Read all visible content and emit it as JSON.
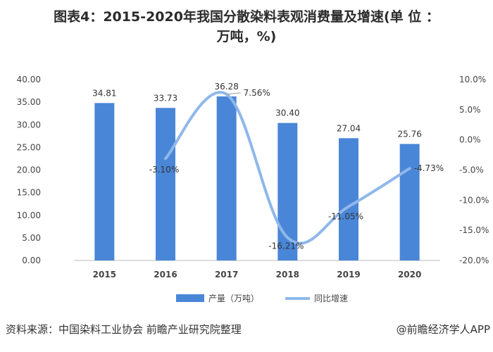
{
  "title_line1": "图表4：2015-2020年我国分散染料表观消费量及增速(单 位 ：",
  "title_line2": "万吨，%)",
  "source": "资料来源：中国染料工业协会 前瞻产业研究院整理",
  "brand": "@前瞻经济学人APP",
  "colors": {
    "bar": "#4a86d8",
    "line": "#8fb8ea"
  },
  "chart_data": {
    "type": "bar",
    "categories": [
      "2015",
      "2016",
      "2017",
      "2018",
      "2019",
      "2020"
    ],
    "left_axis": {
      "min": 0,
      "max": 40,
      "ticks": [
        "0.00",
        "5.00",
        "10.00",
        "15.00",
        "20.00",
        "25.00",
        "30.00",
        "35.00",
        "40.00"
      ]
    },
    "right_axis": {
      "min": -20,
      "max": 10,
      "ticks": [
        "-20.0%",
        "-15.0%",
        "-10.0%",
        "-5.0%",
        "0.0%",
        "5.0%",
        "10.0%"
      ]
    },
    "series": [
      {
        "name": "产量（万吨）",
        "type": "bar",
        "axis": "left",
        "values": [
          34.81,
          33.73,
          36.28,
          30.4,
          27.04,
          25.76
        ],
        "labels": [
          "34.81",
          "33.73",
          "36.28",
          "30.40",
          "27.04",
          "25.76"
        ]
      },
      {
        "name": "同比增速",
        "type": "line",
        "axis": "right",
        "values": [
          null,
          -3.1,
          7.56,
          -16.21,
          -11.05,
          -4.73
        ],
        "labels": [
          "",
          "-3.10%",
          "7.56%",
          "-16.21%",
          "-11.05%",
          "-4.73%"
        ]
      }
    ],
    "legend": "bottom"
  }
}
